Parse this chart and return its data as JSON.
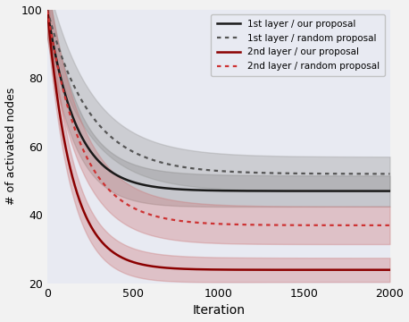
{
  "title": "",
  "xlabel": "Iteration",
  "ylabel": "# of activated nodes",
  "xlim": [
    0,
    2000
  ],
  "ylim": [
    20,
    100
  ],
  "yticks": [
    20,
    40,
    60,
    80,
    100
  ],
  "xticks": [
    0,
    500,
    1000,
    1500,
    2000
  ],
  "bg_color": "#e8eaf2",
  "fig_bg": "#f2f2f2",
  "legend_entries": [
    "1st layer / our proposal",
    "1st layer / random proposal",
    "2nd layer / our proposal",
    "2nd layer / random proposal"
  ],
  "line_colors": {
    "l1_our": "#1a1a1a",
    "l1_rand": "#555555",
    "l2_our": "#8b0000",
    "l2_rand": "#cd3333"
  },
  "band_alpha_gray": 0.35,
  "band_alpha_red": 0.35,
  "curves": {
    "l1_our": {
      "start": 100,
      "end": 47,
      "k": 0.006
    },
    "l1_rand": {
      "start": 100,
      "end": 52,
      "k": 0.004
    },
    "l2_our": {
      "start": 100,
      "end": 24,
      "k": 0.007
    },
    "l2_rand": {
      "start": 100,
      "end": 37,
      "k": 0.005
    }
  },
  "band_widths": {
    "l1_our": 4.5,
    "l1_rand": 5.0,
    "l2_our": 3.5,
    "l2_rand": 5.5
  }
}
